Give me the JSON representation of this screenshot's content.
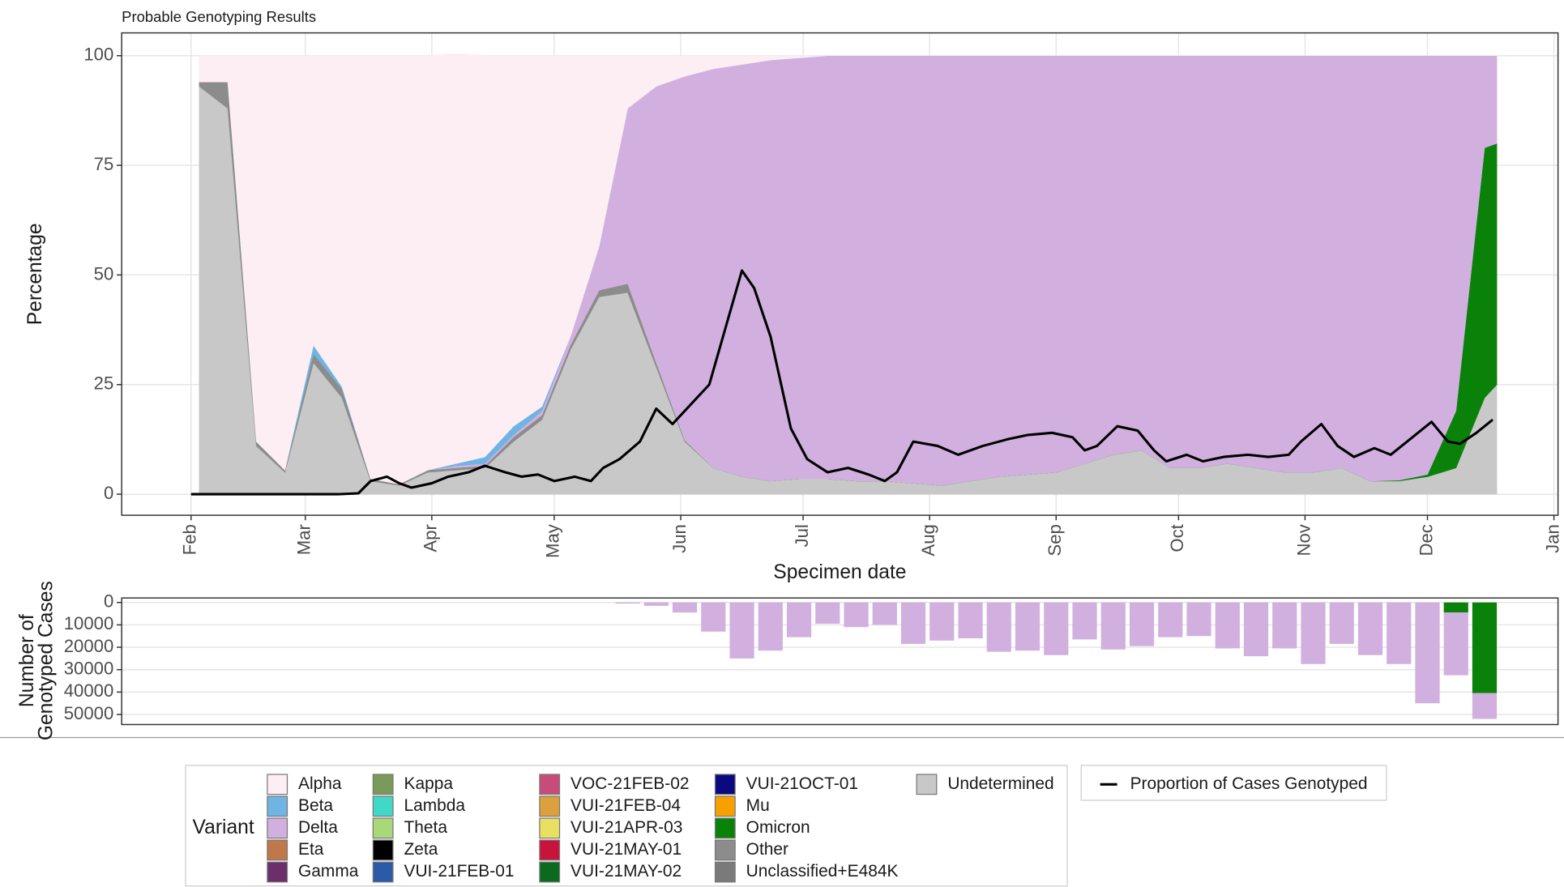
{
  "chart_data": [
    {
      "type": "area",
      "title": "Probable Genotyping Results",
      "x_label": "Specimen date",
      "y_label": "Percentage",
      "legend_title": "Variant",
      "xlim": [
        14,
        366
      ],
      "ylim": [
        -4.8,
        105.2
      ],
      "xticks": [
        {
          "value": 31,
          "label": "Feb"
        },
        {
          "value": 59,
          "label": "Mar"
        },
        {
          "value": 90,
          "label": "Apr"
        },
        {
          "value": 120,
          "label": "May"
        },
        {
          "value": 151,
          "label": "Jun"
        },
        {
          "value": 181,
          "label": "Jul"
        },
        {
          "value": 212,
          "label": "Aug"
        },
        {
          "value": 243,
          "label": "Sep"
        },
        {
          "value": 273,
          "label": "Oct"
        },
        {
          "value": 304,
          "label": "Nov"
        },
        {
          "value": 334,
          "label": "Dec"
        },
        {
          "value": 365,
          "label": "Jan"
        }
      ],
      "yticks": [
        0,
        25,
        50,
        75,
        100
      ],
      "grid": true,
      "x": [
        33,
        40,
        47,
        54,
        61,
        68,
        75,
        82,
        89,
        96,
        103,
        110,
        117,
        124,
        131,
        138,
        145,
        152,
        159,
        166,
        173,
        180,
        187,
        194,
        201,
        208,
        215,
        222,
        229,
        236,
        243,
        250,
        257,
        264,
        271,
        278,
        285,
        292,
        299,
        306,
        313,
        320,
        327,
        334,
        341,
        348,
        351
      ],
      "series": [
        {
          "name": "Alpha",
          "color": "#fdeef4",
          "values": [
            6,
            6,
            88,
            94.5,
            66,
            75.5,
            96.5,
            97.7,
            94.5,
            93.5,
            91.5,
            84.5,
            80,
            64,
            43.5,
            12,
            7,
            4.7,
            3,
            2,
            1,
            0.5,
            0,
            0,
            0,
            0,
            0,
            0,
            0,
            0,
            0,
            0,
            0,
            0,
            0,
            0,
            0,
            0,
            0,
            0,
            0,
            0,
            0,
            0,
            0,
            0,
            0
          ]
        },
        {
          "name": "Beta",
          "color": "#6fb4e3",
          "values": [
            0,
            0,
            0,
            0,
            2,
            0.5,
            0,
            0,
            0,
            0.5,
            1.5,
            2,
            1,
            0,
            0,
            0,
            0,
            0,
            0,
            0,
            0,
            0,
            0,
            0,
            0,
            0,
            0,
            0,
            0,
            0,
            0,
            0,
            0,
            0,
            0,
            0,
            0,
            0,
            0,
            0,
            0,
            0,
            0,
            0,
            0,
            0,
            0
          ]
        },
        {
          "name": "Delta",
          "color": "#d1b0df",
          "values": [
            0,
            0,
            0,
            0,
            0,
            0,
            0,
            0,
            0,
            0.5,
            0.5,
            0.5,
            1,
            2,
            10,
            40,
            63,
            83,
            91,
            94,
            96,
            96,
            96.5,
            97,
            97,
            97.5,
            98,
            97,
            96,
            95.5,
            95,
            93,
            91,
            90,
            94,
            94,
            93,
            94,
            95,
            95,
            94,
            97,
            96.8,
            95.5,
            81,
            21,
            20
          ]
        },
        {
          "name": "Eta",
          "color": "#c0784a"
        },
        {
          "name": "Gamma",
          "color": "#6b2f6b"
        },
        {
          "name": "Kappa",
          "color": "#7a9a5a"
        },
        {
          "name": "Lambda",
          "color": "#40d8c8"
        },
        {
          "name": "Theta",
          "color": "#a8d878"
        },
        {
          "name": "Zeta",
          "color": "#000000"
        },
        {
          "name": "VUI-21FEB-01",
          "color": "#2a5aa8"
        },
        {
          "name": "VOC-21FEB-02",
          "color": "#c84c7a"
        },
        {
          "name": "VUI-21FEB-04",
          "color": "#dca03c"
        },
        {
          "name": "VUI-21APR-03",
          "color": "#e8e060"
        },
        {
          "name": "VUI-21MAY-01",
          "color": "#c8143c"
        },
        {
          "name": "VUI-21MAY-02",
          "color": "#0a6a1e"
        },
        {
          "name": "VUI-21OCT-01",
          "color": "#0a0a80"
        },
        {
          "name": "Mu",
          "color": "#f8a000"
        },
        {
          "name": "Omicron",
          "color": "#0a820a",
          "values": [
            0,
            0,
            0,
            0,
            0,
            0,
            0,
            0,
            0,
            0,
            0,
            0,
            0,
            0,
            0,
            0,
            0,
            0,
            0,
            0,
            0,
            0,
            0,
            0,
            0,
            0,
            0,
            0,
            0,
            0,
            0,
            0,
            0,
            0,
            0,
            0,
            0,
            0,
            0,
            0,
            0,
            0,
            0.2,
            0.5,
            13,
            57,
            55
          ]
        },
        {
          "name": "Other",
          "color": "#8c8c8c",
          "values": [
            1,
            6,
            1,
            0.5,
            2,
            2,
            0.5,
            0.3,
            0.5,
            0.5,
            0.5,
            1,
            1,
            1,
            1.5,
            2,
            1,
            0.3,
            0,
            0,
            0,
            0,
            0,
            0,
            0,
            0,
            0,
            0,
            0,
            0,
            0,
            0,
            0,
            0,
            0,
            0,
            0,
            0,
            0,
            0,
            0,
            0,
            0,
            0,
            0,
            0,
            0
          ]
        },
        {
          "name": "Unclassified+E484K",
          "color": "#7a7a7a"
        },
        {
          "name": "Undetermined",
          "color": "#c8c8c8",
          "values": [
            93,
            88,
            11,
            5,
            30,
            22,
            3,
            2,
            5,
            5.5,
            6,
            12,
            17,
            33,
            45,
            46,
            29,
            12,
            6,
            4,
            3,
            3.5,
            3.5,
            3,
            3,
            2.5,
            2,
            3,
            4,
            4.5,
            5,
            7,
            9,
            10,
            6,
            6,
            7,
            6,
            5,
            5,
            6,
            3,
            3,
            4,
            6,
            22,
            25
          ]
        }
      ],
      "line": {
        "name": "Proportion of Cases Genotyped",
        "color": "#000000",
        "x": [
          31,
          67,
          72,
          75,
          79,
          82,
          85,
          90,
          94,
          99,
          103,
          108,
          112,
          116,
          120,
          125,
          129,
          132,
          136,
          141,
          145,
          149,
          153,
          158,
          162,
          166,
          169,
          173,
          178,
          182,
          187,
          192,
          197,
          201,
          204,
          208,
          214,
          219,
          225,
          231,
          236,
          242,
          247,
          250,
          253,
          258,
          263,
          267,
          270,
          275,
          279,
          284,
          290,
          295,
          300,
          303,
          308,
          312,
          316,
          321,
          325,
          329,
          335,
          339,
          342,
          346,
          350
        ],
        "values": [
          0,
          0,
          0.2,
          3,
          4,
          2.5,
          1.5,
          2.5,
          4,
          5,
          6.5,
          5,
          4,
          4.5,
          3,
          4,
          3,
          6,
          8,
          12,
          19.5,
          16,
          20,
          25,
          38,
          51,
          47,
          36,
          15,
          8,
          5,
          6,
          4.5,
          3,
          5,
          12,
          11,
          9,
          11,
          12.5,
          13.5,
          14,
          13,
          10,
          11,
          15.5,
          14.5,
          10,
          7.5,
          9,
          7.5,
          8.5,
          9,
          8.5,
          9,
          12,
          16,
          11,
          8.5,
          10.5,
          9,
          12,
          16.5,
          12,
          11.5,
          14,
          17
        ]
      }
    },
    {
      "type": "bar",
      "y_label": [
        "Number of",
        "Genotyped Cases"
      ],
      "xlim": [
        14,
        366
      ],
      "ylim": [
        -2000,
        54500
      ],
      "y_reversed": true,
      "yticks": [
        0,
        10000,
        20000,
        30000,
        40000,
        50000
      ],
      "grid": true,
      "stacked": true,
      "x": [
        138,
        145,
        152,
        159,
        166,
        173,
        180,
        187,
        194,
        201,
        208,
        215,
        222,
        229,
        236,
        243,
        250,
        257,
        264,
        271,
        278,
        285,
        292,
        299,
        306,
        313,
        320,
        327,
        334,
        341,
        348
      ],
      "bar_width": 6,
      "series": [
        {
          "color": "#0a820a",
          "values": [
            0,
            0,
            0,
            0,
            0,
            0,
            0,
            0,
            0,
            0,
            0,
            0,
            0,
            0,
            0,
            0,
            0,
            0,
            0,
            0,
            0,
            0,
            0,
            0,
            0,
            0,
            0,
            0,
            0,
            4500,
            40500
          ]
        },
        {
          "color": "#d1b0df",
          "values": [
            500,
            1500,
            4500,
            13000,
            25000,
            21500,
            15500,
            9500,
            11000,
            10000,
            18500,
            17000,
            16000,
            22000,
            21500,
            23500,
            16500,
            21000,
            19500,
            15500,
            15000,
            20500,
            24000,
            20500,
            27500,
            18500,
            23500,
            27500,
            45000,
            28000,
            11500
          ]
        }
      ]
    }
  ]
}
